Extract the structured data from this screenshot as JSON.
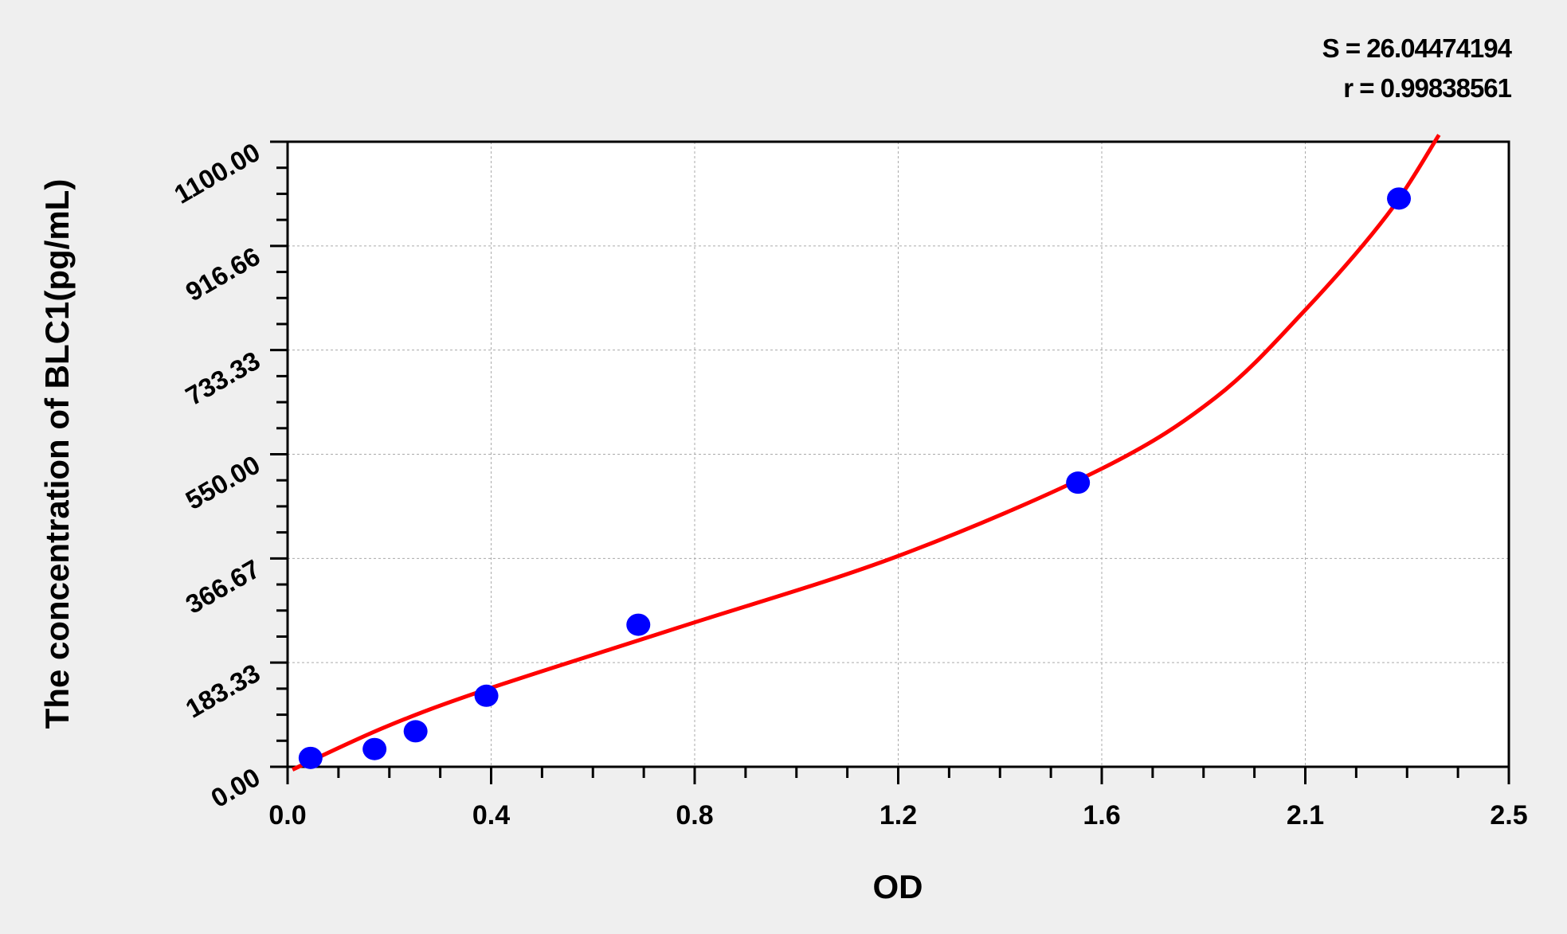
{
  "chart_data": {
    "type": "scatter",
    "title": "",
    "xlabel": "OD",
    "ylabel": "The concentration of BLC1(pg/mL)",
    "xlim": [
      0,
      2.5
    ],
    "ylim": [
      0,
      1100
    ],
    "x_tick_labels": [
      "0.0",
      "0.4",
      "0.8",
      "1.2",
      "1.6",
      "2.1",
      "2.5"
    ],
    "y_tick_labels": [
      "0.00",
      "183.33",
      "366.67",
      "550.00",
      "733.33",
      "916.66",
      "1100.00"
    ],
    "grid": true,
    "points": {
      "x": [
        0.047,
        0.178,
        0.262,
        0.407,
        0.718,
        1.618,
        2.275
      ],
      "y": [
        15.6,
        31.25,
        62.5,
        125,
        250,
        500,
        1000
      ],
      "color": "#0000ff"
    },
    "fit_curve": {
      "x": [
        0.01,
        0.2,
        0.41,
        0.8,
        1.25,
        1.665,
        1.9,
        2.08,
        2.25,
        2.357
      ],
      "y": [
        -5,
        70,
        137,
        245,
        371,
        524,
        650,
        801,
        970,
        1112
      ],
      "color": "#ff0000"
    },
    "annotations": [
      "S = 26.04474194",
      "r = 0.99838561"
    ]
  }
}
